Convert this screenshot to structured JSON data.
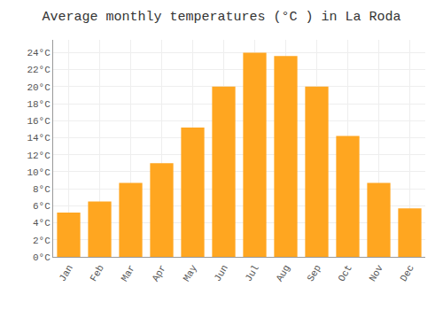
{
  "chart_data": {
    "type": "bar",
    "title": "Average monthly temperatures (°C ) in La Roda",
    "categories": [
      "Jan",
      "Feb",
      "Mar",
      "Apr",
      "May",
      "Jun",
      "Jul",
      "Aug",
      "Sep",
      "Oct",
      "Nov",
      "Dec"
    ],
    "values": [
      5.2,
      6.5,
      8.7,
      11.0,
      15.2,
      20.0,
      24.0,
      23.6,
      20.0,
      14.2,
      8.7,
      5.7
    ],
    "color": "#FFA620",
    "ylim": [
      0,
      25.5
    ],
    "yticks": [
      {
        "value": 0,
        "label": "0°C"
      },
      {
        "value": 2,
        "label": "2°C"
      },
      {
        "value": 4,
        "label": "4°C"
      },
      {
        "value": 6,
        "label": "6°C"
      },
      {
        "value": 8,
        "label": "8°C"
      },
      {
        "value": 10,
        "label": "10°C"
      },
      {
        "value": 12,
        "label": "12°C"
      },
      {
        "value": 14,
        "label": "14°C"
      },
      {
        "value": 16,
        "label": "16°C"
      },
      {
        "value": 18,
        "label": "18°C"
      },
      {
        "value": 20,
        "label": "20°C"
      },
      {
        "value": 22,
        "label": "22°C"
      },
      {
        "value": 24,
        "label": "24°C"
      }
    ],
    "grid": true
  }
}
